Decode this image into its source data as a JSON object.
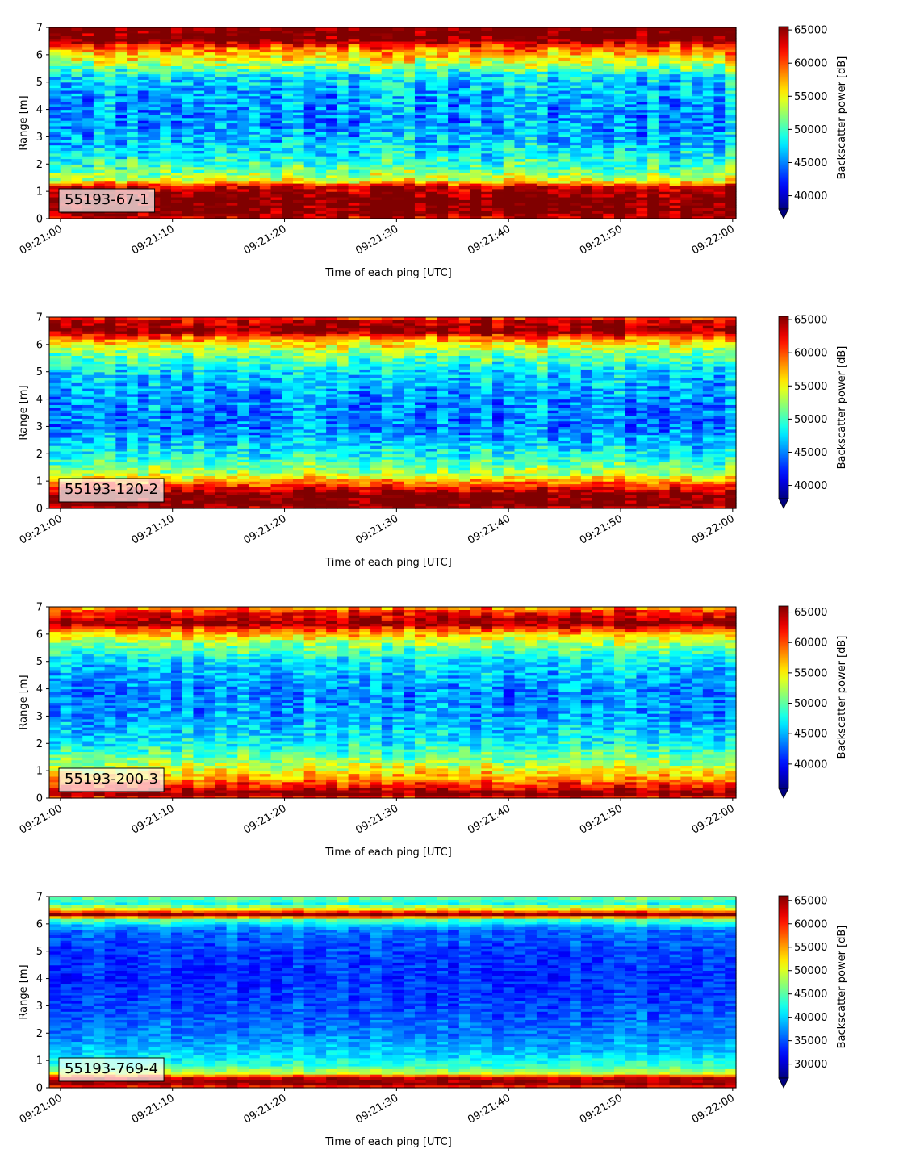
{
  "chart_data": [
    {
      "type": "heatmap",
      "label": "55193-67-1",
      "xlabel": "Time of each ping [UTC]",
      "ylabel": "Range [m]",
      "x_ticks": [
        "09:21:00",
        "09:21:10",
        "09:21:20",
        "09:21:30",
        "09:21:40",
        "09:21:50",
        "09:22:00"
      ],
      "xlim_seconds": [
        -1,
        60.3
      ],
      "ylim": [
        0,
        7
      ],
      "y_ticks": [
        0,
        1,
        2,
        3,
        4,
        5,
        6,
        7
      ],
      "colorbar": {
        "label": "Backscatter power [dB]",
        "vmin": 38000,
        "vmax": 65500,
        "ticks": [
          40000,
          45000,
          50000,
          55000,
          60000,
          65000
        ],
        "extend": "min",
        "colormap": "jet"
      },
      "cols": 62,
      "rows": 70,
      "profile": [
        {
          "r": 0.0,
          "v": 63000
        },
        {
          "r": 0.2,
          "v": 66000
        },
        {
          "r": 0.7,
          "v": 66500
        },
        {
          "r": 1.15,
          "v": 64000
        },
        {
          "r": 1.4,
          "v": 55000
        },
        {
          "r": 1.8,
          "v": 51000
        },
        {
          "r": 2.5,
          "v": 47500
        },
        {
          "r": 3.5,
          "v": 45500
        },
        {
          "r": 4.5,
          "v": 46000
        },
        {
          "r": 5.2,
          "v": 48000
        },
        {
          "r": 5.8,
          "v": 54500
        },
        {
          "r": 6.3,
          "v": 60000
        },
        {
          "r": 6.55,
          "v": 66000
        },
        {
          "r": 7.0,
          "v": 66500
        }
      ],
      "noise": 6000,
      "seed": 11
    },
    {
      "type": "heatmap",
      "label": "55193-120-2",
      "xlabel": "Time of each ping [UTC]",
      "ylabel": "Range [m]",
      "x_ticks": [
        "09:21:00",
        "09:21:10",
        "09:21:20",
        "09:21:30",
        "09:21:40",
        "09:21:50",
        "09:22:00"
      ],
      "xlim_seconds": [
        -1,
        60.3
      ],
      "ylim": [
        0,
        7
      ],
      "y_ticks": [
        0,
        1,
        2,
        3,
        4,
        5,
        6,
        7
      ],
      "colorbar": {
        "label": "Backscatter power [dB]",
        "vmin": 38000,
        "vmax": 65500,
        "ticks": [
          40000,
          45000,
          50000,
          55000,
          60000,
          65000
        ],
        "extend": "min",
        "colormap": "jet"
      },
      "cols": 62,
      "rows": 70,
      "profile": [
        {
          "r": 0.0,
          "v": 64000
        },
        {
          "r": 0.15,
          "v": 66500
        },
        {
          "r": 0.55,
          "v": 66000
        },
        {
          "r": 0.9,
          "v": 60000
        },
        {
          "r": 1.3,
          "v": 53000
        },
        {
          "r": 2.0,
          "v": 48500
        },
        {
          "r": 3.0,
          "v": 45000
        },
        {
          "r": 4.0,
          "v": 45500
        },
        {
          "r": 5.0,
          "v": 47500
        },
        {
          "r": 5.7,
          "v": 52000
        },
        {
          "r": 6.2,
          "v": 58000
        },
        {
          "r": 6.5,
          "v": 66000
        },
        {
          "r": 6.85,
          "v": 64000
        },
        {
          "r": 7.0,
          "v": 60000
        }
      ],
      "noise": 5500,
      "seed": 23
    },
    {
      "type": "heatmap",
      "label": "55193-200-3",
      "xlabel": "Time of each ping [UTC]",
      "ylabel": "Range [m]",
      "x_ticks": [
        "09:21:00",
        "09:21:10",
        "09:21:20",
        "09:21:30",
        "09:21:40",
        "09:21:50",
        "09:22:00"
      ],
      "xlim_seconds": [
        -1,
        60.3
      ],
      "ylim": [
        0,
        7
      ],
      "y_ticks": [
        0,
        1,
        2,
        3,
        4,
        5,
        6,
        7
      ],
      "colorbar": {
        "label": "Backscatter power [dB]",
        "vmin": 36000,
        "vmax": 66000,
        "ticks": [
          40000,
          45000,
          50000,
          55000,
          60000,
          65000
        ],
        "extend": "min",
        "colormap": "jet"
      },
      "cols": 62,
      "rows": 70,
      "profile": [
        {
          "r": 0.0,
          "v": 60000
        },
        {
          "r": 0.15,
          "v": 66500
        },
        {
          "r": 0.45,
          "v": 62000
        },
        {
          "r": 0.8,
          "v": 57000
        },
        {
          "r": 1.3,
          "v": 52000
        },
        {
          "r": 2.0,
          "v": 47500
        },
        {
          "r": 3.0,
          "v": 44500
        },
        {
          "r": 4.0,
          "v": 44000
        },
        {
          "r": 5.0,
          "v": 46500
        },
        {
          "r": 5.7,
          "v": 52000
        },
        {
          "r": 6.1,
          "v": 58000
        },
        {
          "r": 6.4,
          "v": 66000
        },
        {
          "r": 6.8,
          "v": 62000
        },
        {
          "r": 7.0,
          "v": 57000
        }
      ],
      "noise": 5500,
      "seed": 37
    },
    {
      "type": "heatmap",
      "label": "55193-769-4",
      "xlabel": "Time of each ping [UTC]",
      "ylabel": "Range [m]",
      "x_ticks": [
        "09:21:00",
        "09:21:10",
        "09:21:20",
        "09:21:30",
        "09:21:40",
        "09:21:50",
        "09:22:00"
      ],
      "xlim_seconds": [
        -1,
        60.3
      ],
      "ylim": [
        0,
        7
      ],
      "y_ticks": [
        0,
        1,
        2,
        3,
        4,
        5,
        6,
        7
      ],
      "colorbar": {
        "label": "Backscatter power [dB]",
        "vmin": 27000,
        "vmax": 66000,
        "ticks": [
          30000,
          35000,
          40000,
          45000,
          50000,
          55000,
          60000,
          65000
        ],
        "extend": "min",
        "colormap": "jet"
      },
      "cols": 62,
      "rows": 70,
      "profile": [
        {
          "r": 0.0,
          "v": 55000
        },
        {
          "r": 0.1,
          "v": 66500
        },
        {
          "r": 0.35,
          "v": 64000
        },
        {
          "r": 0.55,
          "v": 50000
        },
        {
          "r": 0.8,
          "v": 44000
        },
        {
          "r": 1.3,
          "v": 40000
        },
        {
          "r": 2.0,
          "v": 37000
        },
        {
          "r": 3.0,
          "v": 35000
        },
        {
          "r": 4.0,
          "v": 34000
        },
        {
          "r": 5.0,
          "v": 34500
        },
        {
          "r": 5.8,
          "v": 36500
        },
        {
          "r": 6.15,
          "v": 45000
        },
        {
          "r": 6.35,
          "v": 66000
        },
        {
          "r": 6.5,
          "v": 55000
        },
        {
          "r": 6.75,
          "v": 43000
        },
        {
          "r": 7.0,
          "v": 46000
        }
      ],
      "noise": 4500,
      "seed": 53
    }
  ]
}
